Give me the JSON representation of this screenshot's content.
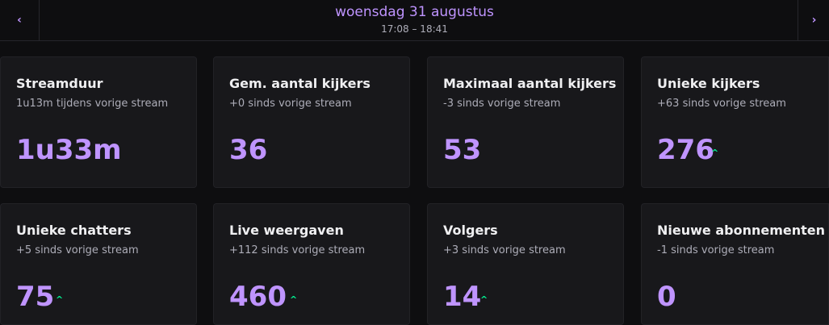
{
  "header": {
    "title": "woensdag 31 augustus",
    "time": "17:08 – 18:41"
  },
  "cards": [
    {
      "label": "Streamduur",
      "change": "1u13m tijdens vorige stream",
      "value": "1u33m"
    },
    {
      "label": "Gem. aantal kijkers",
      "change": "+0 sinds vorige stream",
      "value": 36
    },
    {
      "label": "Maximaal aantal kijkers",
      "change": "-3 sinds vorige stream",
      "value": 53
    },
    {
      "label": "Unieke kijkers",
      "change": "+63 sinds vorige stream",
      "value": 276
    },
    {
      "label": "Unieke chatters",
      "change": "+5 sinds vorige stream",
      "value": 75
    },
    {
      "label": "Live weergaven",
      "change": "+112 sinds vorige stream",
      "value": 460
    },
    {
      "label": "Volgers",
      "change": "+3 sinds vorige stream",
      "value": 14
    },
    {
      "label": "Nieuwe abonnementen",
      "change": "-1 sinds vorige stream",
      "value": 0
    }
  ]
}
